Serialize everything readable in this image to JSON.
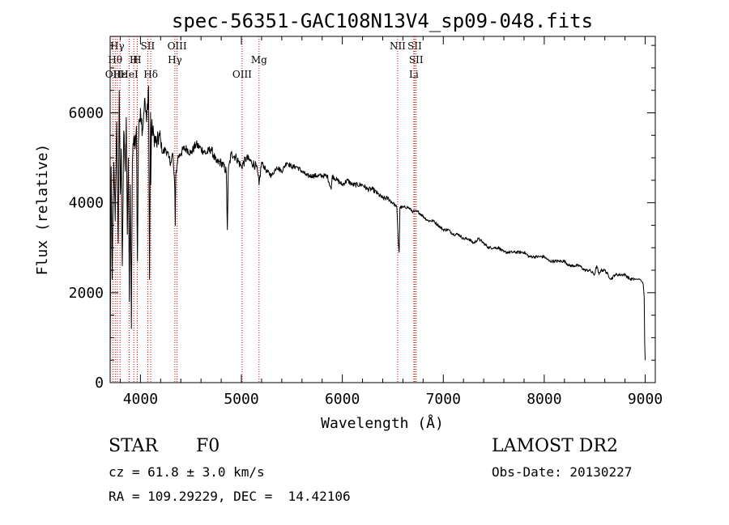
{
  "chart_data": {
    "type": "line",
    "title": "spec-56351-GAC108N13V4_sp09-048.fits",
    "xlabel": "Wavelength (Å)",
    "ylabel": "Flux (relative)",
    "xlim": [
      3700,
      9100
    ],
    "ylim": [
      0,
      7700
    ],
    "x_ticks": [
      4000,
      5000,
      6000,
      7000,
      8000,
      9000
    ],
    "x_tick_labels": [
      "4000",
      "5000",
      "6000",
      "7000",
      "8000",
      "9000"
    ],
    "y_ticks": [
      0,
      2000,
      4000,
      6000
    ],
    "y_tick_labels": [
      "0",
      "2000",
      "4000",
      "6000"
    ],
    "grid": false,
    "legend": "none",
    "line_color": "#000000",
    "marker_color": "#cc0000",
    "series": [
      {
        "x": [
          3700,
          3710,
          3720,
          3735,
          3750,
          3765,
          3780,
          3790,
          3800,
          3810,
          3820,
          3835,
          3850,
          3860,
          3870,
          3880,
          3890,
          3900,
          3910,
          3920,
          3930,
          3940,
          3950,
          3960,
          3970,
          3980,
          3990,
          4000,
          4020,
          4040,
          4060,
          4080,
          4090,
          4100,
          4102,
          4110,
          4130,
          4160,
          4190,
          4220,
          4250,
          4280,
          4300,
          4320,
          4340,
          4345,
          4350,
          4370,
          4400,
          4430,
          4460,
          4500,
          4550,
          4600,
          4650,
          4700,
          4750,
          4800,
          4850,
          4861,
          4870,
          4900,
          4950,
          5000,
          5050,
          5100,
          5150,
          5175,
          5200,
          5250,
          5300,
          5350,
          5400,
          5450,
          5500,
          5550,
          5600,
          5650,
          5700,
          5750,
          5800,
          5850,
          5890,
          5900,
          5950,
          6000,
          6050,
          6100,
          6150,
          6200,
          6250,
          6300,
          6350,
          6400,
          6450,
          6500,
          6540,
          6555,
          6563,
          6570,
          6600,
          6650,
          6700,
          6750,
          6800,
          6850,
          6900,
          6950,
          7000,
          7050,
          7100,
          7150,
          7200,
          7250,
          7300,
          7350,
          7400,
          7450,
          7500,
          7550,
          7600,
          7650,
          7700,
          7750,
          7800,
          7850,
          7900,
          7950,
          8000,
          8050,
          8100,
          8150,
          8200,
          8250,
          8300,
          8350,
          8400,
          8450,
          8498,
          8520,
          8542,
          8560,
          8600,
          8662,
          8700,
          8750,
          8800,
          8850,
          8900,
          8950,
          8980,
          8990,
          8995,
          9000
        ],
        "y": [
          300,
          4800,
          2300,
          4900,
          3600,
          5800,
          3100,
          6500,
          4200,
          5200,
          2600,
          5600,
          4700,
          5900,
          3300,
          5000,
          1800,
          4400,
          1200,
          4900,
          5300,
          5500,
          5300,
          5700,
          2700,
          5400,
          5800,
          6100,
          5600,
          6300,
          5800,
          6600,
          2300,
          6000,
          4400,
          5700,
          5500,
          5300,
          5500,
          5100,
          5200,
          5000,
          4900,
          5100,
          4300,
          3500,
          4600,
          5000,
          5100,
          5200,
          5200,
          5100,
          5300,
          5200,
          5100,
          5200,
          4900,
          4900,
          4700,
          3400,
          4700,
          5100,
          5000,
          4800,
          5000,
          4900,
          4800,
          4400,
          4900,
          4700,
          4600,
          4800,
          4700,
          4900,
          4800,
          4800,
          4700,
          4600,
          4600,
          4600,
          4600,
          4600,
          4300,
          4600,
          4500,
          4400,
          4500,
          4400,
          4400,
          4400,
          4300,
          4300,
          4200,
          4100,
          4100,
          4000,
          3900,
          3100,
          2900,
          3900,
          3900,
          3900,
          3800,
          3800,
          3700,
          3600,
          3600,
          3500,
          3400,
          3400,
          3300,
          3300,
          3200,
          3200,
          3100,
          3200,
          3100,
          3000,
          3000,
          3000,
          2900,
          2900,
          2900,
          2900,
          2900,
          2800,
          2800,
          2800,
          2800,
          2700,
          2700,
          2700,
          2700,
          2600,
          2600,
          2600,
          2500,
          2500,
          2400,
          2600,
          2400,
          2500,
          2500,
          2300,
          2400,
          2400,
          2400,
          2300,
          2300,
          2300,
          2200,
          1900,
          900,
          500
        ]
      }
    ],
    "markers": [
      {
        "x": 3727,
        "label": "OII",
        "row": 2
      },
      {
        "x": 3750,
        "label": "Hθ",
        "row": 1
      },
      {
        "x": 3771,
        "label": "Hγ",
        "row": 0
      },
      {
        "x": 3798,
        "label": "Hε",
        "row": 2
      },
      {
        "x": 3889,
        "label": "HeI",
        "row": 2
      },
      {
        "x": 3934,
        "label": "H",
        "row": 1
      },
      {
        "x": 3968,
        "label": "H",
        "row": 1
      },
      {
        "x": 4072,
        "label": "SII",
        "row": 0
      },
      {
        "x": 4102,
        "label": "Hδ",
        "row": 2
      },
      {
        "x": 4341,
        "label": "Hγ",
        "row": 1
      },
      {
        "x": 4363,
        "label": "OIII",
        "row": 0
      },
      {
        "x": 5007,
        "label": "OIII",
        "row": 2
      },
      {
        "x": 5175,
        "label": "Mg",
        "row": 1
      },
      {
        "x": 6548,
        "label": "NII",
        "row": 0
      },
      {
        "x": 6708,
        "label": "Li",
        "row": 2
      },
      {
        "x": 6717,
        "label": "SII",
        "row": 0
      },
      {
        "x": 6731,
        "label": "SII",
        "row": 1
      }
    ]
  },
  "info": {
    "object_class": "STAR",
    "subclass": "F0",
    "survey": "LAMOST DR2",
    "redshift": "cz = 61.8 ± 3.0 km/s",
    "obs_date": "Obs-Date: 20130227",
    "coords": "RA = 109.29229, DEC =  14.42106"
  }
}
